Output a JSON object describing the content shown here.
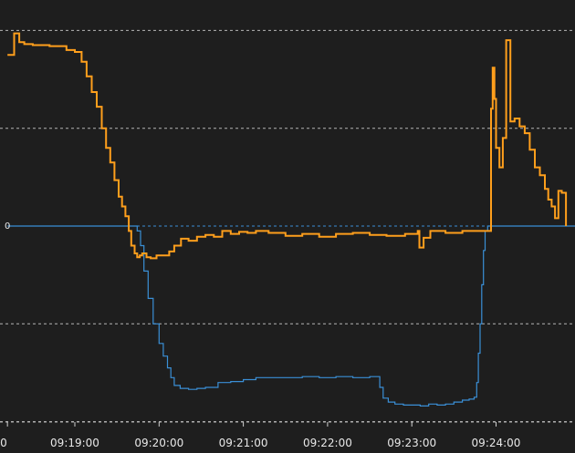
{
  "chart_data": {
    "type": "line",
    "title": "",
    "xlabel": "",
    "ylabel": "",
    "grid": "horizontal dashed",
    "legend": "none",
    "x_range_minutes": [
      -0.8,
      6.05
    ],
    "y_range": [
      -2.0,
      2.0
    ],
    "y_ticks_visible": [
      0
    ],
    "zero_label": "0",
    "x_ticks": [
      {
        "label": "0",
        "minute": -0.8
      },
      {
        "label": "09:19:00",
        "minute": 0
      },
      {
        "label": "09:20:00",
        "minute": 1
      },
      {
        "label": "09:21:00",
        "minute": 2
      },
      {
        "label": "09:22:00",
        "minute": 3
      },
      {
        "label": "09:23:00",
        "minute": 4
      },
      {
        "label": "09:24:00",
        "minute": 5
      }
    ],
    "colors": {
      "background": "#1e1e1e",
      "grid": "#cfcfcf",
      "orange_series": "#ff9f1c",
      "blue_series": "#3a8fd6"
    },
    "series": [
      {
        "color_key": "orange_series",
        "step": true,
        "points": [
          [
            -0.8,
            1.75
          ],
          [
            -0.72,
            1.97
          ],
          [
            -0.66,
            1.88
          ],
          [
            -0.6,
            1.86
          ],
          [
            -0.5,
            1.85
          ],
          [
            -0.3,
            1.84
          ],
          [
            -0.1,
            1.8
          ],
          [
            0.0,
            1.78
          ],
          [
            0.08,
            1.68
          ],
          [
            0.14,
            1.53
          ],
          [
            0.2,
            1.37
          ],
          [
            0.26,
            1.22
          ],
          [
            0.32,
            1.0
          ],
          [
            0.37,
            0.8
          ],
          [
            0.42,
            0.65
          ],
          [
            0.47,
            0.47
          ],
          [
            0.52,
            0.3
          ],
          [
            0.56,
            0.2
          ],
          [
            0.6,
            0.1
          ],
          [
            0.64,
            -0.05
          ],
          [
            0.67,
            -0.2
          ],
          [
            0.71,
            -0.28
          ],
          [
            0.74,
            -0.32
          ],
          [
            0.77,
            -0.3
          ],
          [
            0.8,
            -0.28
          ],
          [
            0.85,
            -0.32
          ],
          [
            0.9,
            -0.33
          ],
          [
            0.97,
            -0.3
          ],
          [
            1.05,
            -0.3
          ],
          [
            1.12,
            -0.26
          ],
          [
            1.18,
            -0.2
          ],
          [
            1.26,
            -0.13
          ],
          [
            1.35,
            -0.15
          ],
          [
            1.45,
            -0.11
          ],
          [
            1.55,
            -0.09
          ],
          [
            1.65,
            -0.11
          ],
          [
            1.75,
            -0.05
          ],
          [
            1.85,
            -0.08
          ],
          [
            1.95,
            -0.06
          ],
          [
            2.05,
            -0.07
          ],
          [
            2.15,
            -0.05
          ],
          [
            2.3,
            -0.07
          ],
          [
            2.5,
            -0.1
          ],
          [
            2.7,
            -0.08
          ],
          [
            2.9,
            -0.11
          ],
          [
            3.1,
            -0.08
          ],
          [
            3.3,
            -0.07
          ],
          [
            3.5,
            -0.09
          ],
          [
            3.7,
            -0.1
          ],
          [
            3.92,
            -0.08
          ],
          [
            4.07,
            -0.05
          ],
          [
            4.09,
            -0.22
          ],
          [
            4.14,
            -0.12
          ],
          [
            4.22,
            -0.05
          ],
          [
            4.4,
            -0.07
          ],
          [
            4.6,
            -0.05
          ],
          [
            4.8,
            -0.05
          ],
          [
            4.92,
            -0.05
          ],
          [
            4.94,
            1.2
          ],
          [
            4.96,
            1.62
          ],
          [
            4.98,
            1.3
          ],
          [
            5.0,
            0.8
          ],
          [
            5.04,
            0.6
          ],
          [
            5.08,
            0.9
          ],
          [
            5.12,
            1.9
          ],
          [
            5.17,
            1.07
          ],
          [
            5.22,
            1.1
          ],
          [
            5.28,
            1.02
          ],
          [
            5.34,
            0.95
          ],
          [
            5.4,
            0.78
          ],
          [
            5.46,
            0.6
          ],
          [
            5.52,
            0.52
          ],
          [
            5.58,
            0.38
          ],
          [
            5.62,
            0.27
          ],
          [
            5.66,
            0.2
          ],
          [
            5.7,
            0.08
          ],
          [
            5.74,
            0.36
          ],
          [
            5.78,
            0.34
          ],
          [
            5.83,
            0.0
          ]
        ]
      },
      {
        "color_key": "blue_series",
        "step": true,
        "points": [
          [
            -0.8,
            0.0
          ],
          [
            0.7,
            0.0
          ],
          [
            0.74,
            -0.05
          ],
          [
            0.78,
            -0.2
          ],
          [
            0.82,
            -0.46
          ],
          [
            0.87,
            -0.74
          ],
          [
            0.93,
            -1.0
          ],
          [
            1.0,
            -1.2
          ],
          [
            1.05,
            -1.33
          ],
          [
            1.1,
            -1.45
          ],
          [
            1.14,
            -1.55
          ],
          [
            1.18,
            -1.63
          ],
          [
            1.25,
            -1.66
          ],
          [
            1.35,
            -1.67
          ],
          [
            1.45,
            -1.66
          ],
          [
            1.55,
            -1.65
          ],
          [
            1.7,
            -1.6
          ],
          [
            1.85,
            -1.59
          ],
          [
            2.0,
            -1.57
          ],
          [
            2.15,
            -1.55
          ],
          [
            2.3,
            -1.55
          ],
          [
            2.5,
            -1.55
          ],
          [
            2.7,
            -1.54
          ],
          [
            2.9,
            -1.55
          ],
          [
            3.1,
            -1.54
          ],
          [
            3.3,
            -1.55
          ],
          [
            3.5,
            -1.54
          ],
          [
            3.6,
            -1.54
          ],
          [
            3.62,
            -1.65
          ],
          [
            3.66,
            -1.76
          ],
          [
            3.72,
            -1.8
          ],
          [
            3.8,
            -1.82
          ],
          [
            3.9,
            -1.83
          ],
          [
            4.0,
            -1.83
          ],
          [
            4.1,
            -1.84
          ],
          [
            4.2,
            -1.82
          ],
          [
            4.3,
            -1.83
          ],
          [
            4.4,
            -1.82
          ],
          [
            4.5,
            -1.8
          ],
          [
            4.6,
            -1.78
          ],
          [
            4.68,
            -1.77
          ],
          [
            4.74,
            -1.75
          ],
          [
            4.77,
            -1.6
          ],
          [
            4.79,
            -1.3
          ],
          [
            4.81,
            -1.0
          ],
          [
            4.83,
            -0.6
          ],
          [
            4.85,
            -0.25
          ],
          [
            4.87,
            -0.05
          ],
          [
            4.9,
            0.0
          ],
          [
            6.05,
            0.0
          ]
        ]
      }
    ]
  }
}
